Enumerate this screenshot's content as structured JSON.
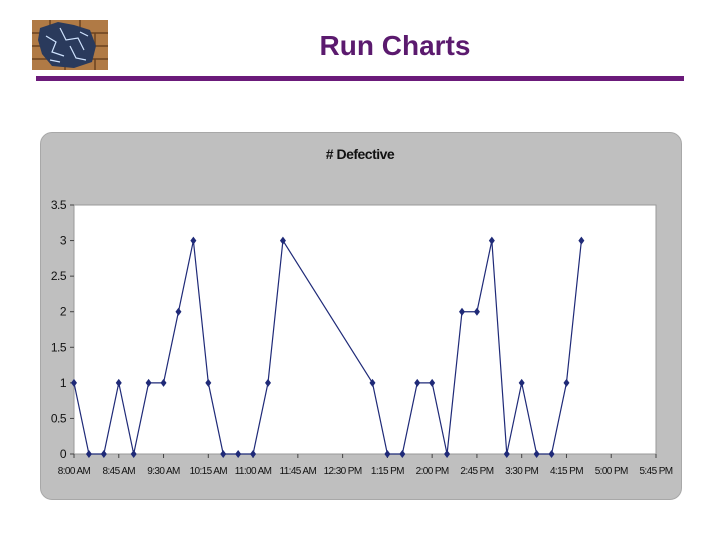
{
  "slide": {
    "title": "Run Charts"
  },
  "colors": {
    "title": "#5b1a6e",
    "rule": "#6b1a7a",
    "series": "#1f2a78",
    "panel": "#bfbfbf",
    "plot_area": "#ffffff"
  },
  "logo": {
    "icon": "brick-cracked-wall-icon"
  },
  "chart_data": {
    "type": "line",
    "title": "# Defective",
    "xlabel": "",
    "ylabel": "",
    "ylim": [
      0,
      3.5
    ],
    "yticks": [
      "0",
      "0.5",
      "1",
      "1.5",
      "2",
      "2.5",
      "3",
      "3.5"
    ],
    "xticks": [
      "8:00 AM",
      "8:45 AM",
      "9:30 AM",
      "10:15 AM",
      "11:00 AM",
      "11:45 AM",
      "12:30 PM",
      "1:15 PM",
      "2:00 PM",
      "2:45 PM",
      "3:30 PM",
      "4:15 PM",
      "5:00 PM",
      "5:45 PM"
    ],
    "x_minutes_range": [
      "8:00 AM",
      "5:45 PM"
    ],
    "grid": false,
    "legend": "none",
    "series": [
      {
        "x": [
          "8:00 AM",
          "8:15 AM",
          "8:30 AM",
          "8:45 AM",
          "9:00 AM",
          "9:15 AM",
          "9:30 AM",
          "9:45 AM",
          "10:00 AM",
          "10:15 AM",
          "10:30 AM",
          "10:45 AM",
          "11:00 AM",
          "11:15 AM",
          "11:30 AM",
          "11:45 AM",
          "1:00 PM",
          "1:15 PM",
          "1:30 PM",
          "1:45 PM",
          "2:00 PM",
          "2:15 PM",
          "2:30 PM",
          "2:45 PM",
          "3:00 PM",
          "3:15 PM",
          "3:30 PM",
          "3:45 PM",
          "4:00 PM",
          "4:15 PM",
          "4:30 PM",
          "4:45 PM"
        ],
        "values": [
          1,
          0,
          0,
          1,
          0,
          1,
          1,
          2,
          3,
          1,
          0,
          0,
          0,
          1,
          3,
          null,
          1,
          0,
          0,
          1,
          1,
          0,
          2,
          2,
          3,
          0,
          1,
          0,
          0,
          1,
          3,
          null
        ]
      }
    ]
  }
}
